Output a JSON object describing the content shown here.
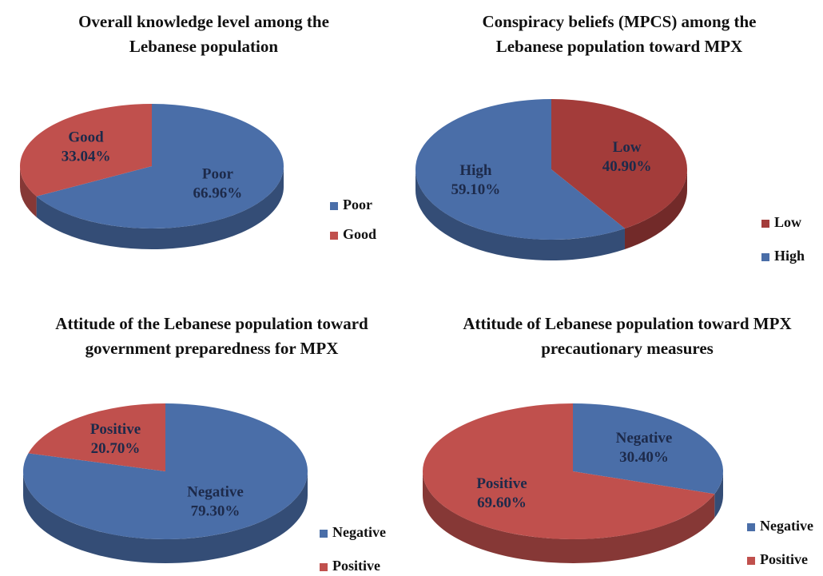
{
  "chart_data": [
    {
      "type": "pie",
      "title": "Overall knowledge level among the Lebanese population",
      "categories": [
        "Poor",
        "Good"
      ],
      "values": [
        66.96,
        33.04
      ],
      "value_labels": [
        "66.96%",
        "33.04%"
      ],
      "colors": [
        "#4a6ea8",
        "#c0504d"
      ]
    },
    {
      "type": "pie",
      "title": "Conspiracy beliefs (MPCS) among the Lebanese population toward MPX",
      "categories": [
        "Low",
        "High"
      ],
      "values": [
        40.9,
        59.1
      ],
      "value_labels": [
        "40.90%",
        "59.10%"
      ],
      "colors": [
        "#a33c3a",
        "#4a6ea8"
      ]
    },
    {
      "type": "pie",
      "title": "Attitude of the Lebanese population toward government preparedness for MPX",
      "categories": [
        "Negative",
        "Positive"
      ],
      "values": [
        79.3,
        20.7
      ],
      "value_labels": [
        "79.30%",
        "20.70%"
      ],
      "colors": [
        "#4a6ea8",
        "#c0504d"
      ]
    },
    {
      "type": "pie",
      "title": "Attitude of Lebanese population toward MPX precautionary measures",
      "categories": [
        "Negative",
        "Positive"
      ],
      "values": [
        30.4,
        69.6
      ],
      "value_labels": [
        "30.40%",
        "69.60%"
      ],
      "colors": [
        "#4a6ea8",
        "#c0504d"
      ]
    }
  ]
}
